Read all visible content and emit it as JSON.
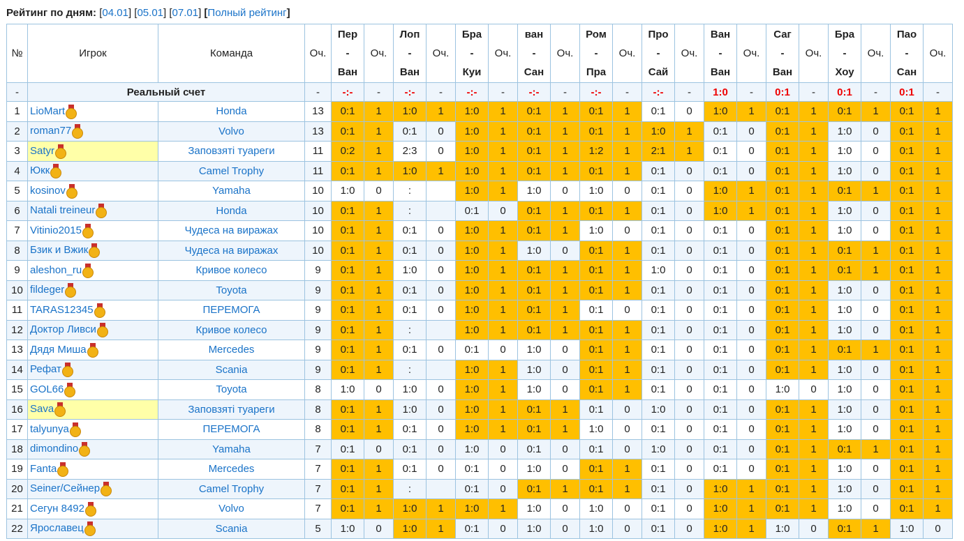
{
  "nav": {
    "label": "Рейтинг по дням:",
    "days": [
      "04.01",
      "05.01",
      "07.01"
    ],
    "full_link": "Полный рейтинг"
  },
  "header": {
    "num": "№",
    "player": "Игрок",
    "team": "Команда",
    "points": "Оч.",
    "score_col": "Оч.",
    "matches": [
      {
        "home": "Пер",
        "sep": "-",
        "away": "Ван"
      },
      {
        "home": "Лоп",
        "sep": "-",
        "away": "Ван"
      },
      {
        "home": "Бра",
        "sep": "-",
        "away": "Куи"
      },
      {
        "home": "ван",
        "sep": "-",
        "away": "Сан"
      },
      {
        "home": "Ром",
        "sep": "-",
        "away": "Пра"
      },
      {
        "home": "Про",
        "sep": "-",
        "away": "Сай"
      },
      {
        "home": "Ван",
        "sep": "-",
        "away": "Ван"
      },
      {
        "home": "Саг",
        "sep": "-",
        "away": "Ван"
      },
      {
        "home": "Бра",
        "sep": "-",
        "away": "Хоу"
      },
      {
        "home": "Пао",
        "sep": "-",
        "away": "Сан"
      }
    ]
  },
  "real_row": {
    "num": "-",
    "label": "Реальный счет",
    "points": "-",
    "cells": [
      "-:-",
      "-",
      "-:-",
      "-",
      "-:-",
      "-",
      "-:-",
      "-",
      "-:-",
      "-",
      "-:-",
      "-",
      "1:0",
      "-",
      "0:1",
      "-",
      "0:1",
      "-",
      "0:1",
      "-"
    ]
  },
  "colors": {
    "hit": "#ffbf00",
    "highlight": "#ffffa8",
    "link": "#1a73c8",
    "real_score": "#e00000"
  },
  "rows": [
    {
      "num": "1",
      "player": "LioMart",
      "team": "Honda",
      "points": "13",
      "cells": [
        "0:1",
        "1",
        "1:0",
        "1",
        "1:0",
        "1",
        "0:1",
        "1",
        "0:1",
        "1",
        "0:1",
        "0",
        "1:0",
        "1",
        "0:1",
        "1",
        "0:1",
        "1",
        "0:1",
        "1"
      ],
      "medal": "medal-icon"
    },
    {
      "num": "2",
      "player": "roman77",
      "team": "Volvo",
      "points": "13",
      "cells": [
        "0:1",
        "1",
        "0:1",
        "0",
        "1:0",
        "1",
        "0:1",
        "1",
        "0:1",
        "1",
        "1:0",
        "1",
        "0:1",
        "0",
        "0:1",
        "1",
        "1:0",
        "0",
        "0:1",
        "1"
      ],
      "medal": "medal-icon"
    },
    {
      "num": "3",
      "player": "Satyr",
      "team": "Заповзяті туареги",
      "points": "11",
      "cells": [
        "0:2",
        "1",
        "2:3",
        "0",
        "1:0",
        "1",
        "0:1",
        "1",
        "1:2",
        "1",
        "2:1",
        "1",
        "0:1",
        "0",
        "0:1",
        "1",
        "1:0",
        "0",
        "0:1",
        "1"
      ],
      "medal": "medal-icon"
    },
    {
      "num": "4",
      "player": "Юкк",
      "team": "Camel Trophy",
      "points": "11",
      "cells": [
        "0:1",
        "1",
        "1:0",
        "1",
        "1:0",
        "1",
        "0:1",
        "1",
        "0:1",
        "1",
        "0:1",
        "0",
        "0:1",
        "0",
        "0:1",
        "1",
        "1:0",
        "0",
        "0:1",
        "1"
      ],
      "medal": "medal-icon"
    },
    {
      "num": "5",
      "player": "kosinov",
      "team": "Yamaha",
      "points": "10",
      "cells": [
        "1:0",
        "0",
        ":",
        "",
        "1:0",
        "1",
        "1:0",
        "0",
        "1:0",
        "0",
        "0:1",
        "0",
        "1:0",
        "1",
        "0:1",
        "1",
        "0:1",
        "1",
        "0:1",
        "1"
      ],
      "medal": "medal-icon"
    },
    {
      "num": "6",
      "player": "Natali treineur",
      "team": "Honda",
      "points": "10",
      "cells": [
        "0:1",
        "1",
        ":",
        "",
        "0:1",
        "0",
        "0:1",
        "1",
        "0:1",
        "1",
        "0:1",
        "0",
        "1:0",
        "1",
        "0:1",
        "1",
        "1:0",
        "0",
        "0:1",
        "1"
      ],
      "medal": "medal-icon"
    },
    {
      "num": "7",
      "player": "Vitinio2015",
      "team": "Чудеса на виражах",
      "points": "10",
      "cells": [
        "0:1",
        "1",
        "0:1",
        "0",
        "1:0",
        "1",
        "0:1",
        "1",
        "1:0",
        "0",
        "0:1",
        "0",
        "0:1",
        "0",
        "0:1",
        "1",
        "1:0",
        "0",
        "0:1",
        "1"
      ],
      "medal": "medal-icon"
    },
    {
      "num": "8",
      "player": "Бзик и Вжик",
      "team": "Чудеса на виражах",
      "points": "10",
      "cells": [
        "0:1",
        "1",
        "0:1",
        "0",
        "1:0",
        "1",
        "1:0",
        "0",
        "0:1",
        "1",
        "0:1",
        "0",
        "0:1",
        "0",
        "0:1",
        "1",
        "0:1",
        "1",
        "0:1",
        "1"
      ],
      "medal": "medal-icon"
    },
    {
      "num": "9",
      "player": "aleshon_ru",
      "team": "Кривое колесо",
      "points": "9",
      "cells": [
        "0:1",
        "1",
        "1:0",
        "0",
        "1:0",
        "1",
        "0:1",
        "1",
        "0:1",
        "1",
        "1:0",
        "0",
        "0:1",
        "0",
        "0:1",
        "1",
        "0:1",
        "1",
        "0:1",
        "1"
      ],
      "medal": "medal-icon"
    },
    {
      "num": "10",
      "player": "fildeger",
      "team": "Toyota",
      "points": "9",
      "cells": [
        "0:1",
        "1",
        "0:1",
        "0",
        "1:0",
        "1",
        "0:1",
        "1",
        "0:1",
        "1",
        "0:1",
        "0",
        "0:1",
        "0",
        "0:1",
        "1",
        "1:0",
        "0",
        "0:1",
        "1"
      ],
      "medal": "medal-icon"
    },
    {
      "num": "11",
      "player": "TARAS12345",
      "team": "ПЕРЕМОГА",
      "points": "9",
      "cells": [
        "0:1",
        "1",
        "0:1",
        "0",
        "1:0",
        "1",
        "0:1",
        "1",
        "0:1",
        "0",
        "0:1",
        "0",
        "0:1",
        "0",
        "0:1",
        "1",
        "1:0",
        "0",
        "0:1",
        "1"
      ],
      "medal": "medal-icon"
    },
    {
      "num": "12",
      "player": "Доктор Ливси",
      "team": "Кривое колесо",
      "points": "9",
      "cells": [
        "0:1",
        "1",
        ":",
        "",
        "1:0",
        "1",
        "0:1",
        "1",
        "0:1",
        "1",
        "0:1",
        "0",
        "0:1",
        "0",
        "0:1",
        "1",
        "1:0",
        "0",
        "0:1",
        "1"
      ],
      "medal": "medal-icon"
    },
    {
      "num": "13",
      "player": "Дядя Миша",
      "team": "Mercedes",
      "points": "9",
      "cells": [
        "0:1",
        "1",
        "0:1",
        "0",
        "0:1",
        "0",
        "1:0",
        "0",
        "0:1",
        "1",
        "0:1",
        "0",
        "0:1",
        "0",
        "0:1",
        "1",
        "0:1",
        "1",
        "0:1",
        "1"
      ],
      "medal": "medal-icon"
    },
    {
      "num": "14",
      "player": "Рефат",
      "team": "Scania",
      "points": "9",
      "cells": [
        "0:1",
        "1",
        ":",
        "",
        "1:0",
        "1",
        "1:0",
        "0",
        "0:1",
        "1",
        "0:1",
        "0",
        "0:1",
        "0",
        "0:1",
        "1",
        "1:0",
        "0",
        "0:1",
        "1"
      ],
      "medal": "medal-icon"
    },
    {
      "num": "15",
      "player": "GOL66",
      "team": "Toyota",
      "points": "8",
      "cells": [
        "1:0",
        "0",
        "1:0",
        "0",
        "1:0",
        "1",
        "1:0",
        "0",
        "0:1",
        "1",
        "0:1",
        "0",
        "0:1",
        "0",
        "1:0",
        "0",
        "1:0",
        "0",
        "0:1",
        "1"
      ],
      "medal": "medal-icon"
    },
    {
      "num": "16",
      "player": "Sava",
      "team": "Заповзяті туареги",
      "points": "8",
      "cells": [
        "0:1",
        "1",
        "1:0",
        "0",
        "1:0",
        "1",
        "0:1",
        "1",
        "0:1",
        "0",
        "1:0",
        "0",
        "0:1",
        "0",
        "0:1",
        "1",
        "1:0",
        "0",
        "0:1",
        "1"
      ],
      "medal": "medal-icon"
    },
    {
      "num": "17",
      "player": "talyunya",
      "team": "ПЕРЕМОГА",
      "points": "8",
      "cells": [
        "0:1",
        "1",
        "0:1",
        "0",
        "1:0",
        "1",
        "0:1",
        "1",
        "1:0",
        "0",
        "0:1",
        "0",
        "0:1",
        "0",
        "0:1",
        "1",
        "1:0",
        "0",
        "0:1",
        "1"
      ],
      "medal": "medal-icon"
    },
    {
      "num": "18",
      "player": "dimondino",
      "team": "Yamaha",
      "points": "7",
      "cells": [
        "0:1",
        "0",
        "0:1",
        "0",
        "1:0",
        "0",
        "0:1",
        "0",
        "0:1",
        "0",
        "1:0",
        "0",
        "0:1",
        "0",
        "0:1",
        "1",
        "0:1",
        "1",
        "0:1",
        "1"
      ],
      "medal": "medal-icon"
    },
    {
      "num": "19",
      "player": "Fanta",
      "team": "Mercedes",
      "points": "7",
      "cells": [
        "0:1",
        "1",
        "0:1",
        "0",
        "0:1",
        "0",
        "1:0",
        "0",
        "0:1",
        "1",
        "0:1",
        "0",
        "0:1",
        "0",
        "0:1",
        "1",
        "1:0",
        "0",
        "0:1",
        "1"
      ],
      "medal": "medal-icon"
    },
    {
      "num": "20",
      "player": "Seiner/Сейнер",
      "team": "Camel Trophy",
      "points": "7",
      "cells": [
        "0:1",
        "1",
        ":",
        "",
        "0:1",
        "0",
        "0:1",
        "1",
        "0:1",
        "1",
        "0:1",
        "0",
        "1:0",
        "1",
        "0:1",
        "1",
        "1:0",
        "0",
        "0:1",
        "1"
      ],
      "medal": "medal-icon"
    },
    {
      "num": "21",
      "player": "Сегун 8492",
      "team": "Volvo",
      "points": "7",
      "cells": [
        "0:1",
        "1",
        "1:0",
        "1",
        "1:0",
        "1",
        "1:0",
        "0",
        "1:0",
        "0",
        "0:1",
        "0",
        "1:0",
        "1",
        "0:1",
        "1",
        "1:0",
        "0",
        "0:1",
        "1"
      ],
      "medal": "medal-icon"
    },
    {
      "num": "22",
      "player": "Ярославец",
      "team": "Scania",
      "points": "5",
      "cells": [
        "1:0",
        "0",
        "1:0",
        "1",
        "0:1",
        "0",
        "1:0",
        "0",
        "1:0",
        "0",
        "0:1",
        "0",
        "1:0",
        "1",
        "1:0",
        "0",
        "0:1",
        "1",
        "1:0",
        "0"
      ],
      "medal": "medal-icon"
    }
  ],
  "highlighted_players": [
    "Satyr",
    "Sava"
  ]
}
